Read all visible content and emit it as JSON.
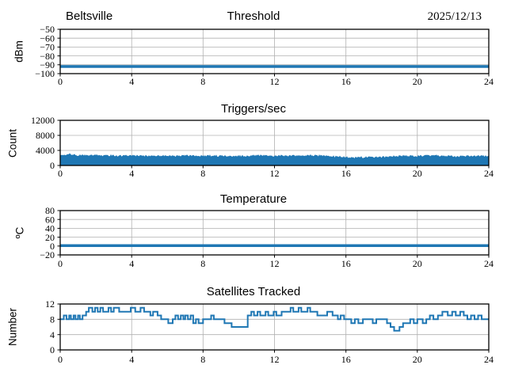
{
  "figure": {
    "background": "#ffffff",
    "accent_color": "#1f77b4",
    "grid_color": "#b0b0b0",
    "axis_color": "#000000",
    "x_unit": "hour of day"
  },
  "chart_data": [
    {
      "type": "line",
      "title": "Threshold",
      "title_left": "Beltsville",
      "title_right": "2025/12/13",
      "ylabel": "dBm",
      "xlim": [
        0,
        24
      ],
      "ylim": [
        -100,
        -50
      ],
      "xticks": [
        0,
        4,
        8,
        12,
        16,
        20,
        24
      ],
      "yticks": [
        -50,
        -60,
        -70,
        -80,
        -90,
        -100
      ],
      "grid": true,
      "legend": false,
      "series": [
        {
          "name": "threshold_dbm",
          "style": "hline",
          "value": -92,
          "linewidth": 3.5
        }
      ]
    },
    {
      "type": "area",
      "title": "Triggers/sec",
      "ylabel": "Count",
      "xlim": [
        0,
        24
      ],
      "ylim": [
        0,
        12000
      ],
      "xticks": [
        0,
        4,
        8,
        12,
        16,
        20,
        24
      ],
      "yticks": [
        0,
        4000,
        8000,
        12000
      ],
      "grid": true,
      "legend": false,
      "series": [
        {
          "name": "triggers_per_sec",
          "style": "noisy-band",
          "base": 80,
          "noise": 250,
          "envelope": [
            [
              0,
              2700
            ],
            [
              0.5,
              2900
            ],
            [
              1,
              2600
            ],
            [
              2,
              2600
            ],
            [
              3,
              2500
            ],
            [
              4,
              2500
            ],
            [
              5,
              2400
            ],
            [
              6,
              2450
            ],
            [
              7,
              2500
            ],
            [
              8,
              2400
            ],
            [
              9,
              2450
            ],
            [
              10,
              2350
            ],
            [
              11,
              2500
            ],
            [
              12,
              2500
            ],
            [
              13,
              2450
            ],
            [
              14,
              2550
            ],
            [
              15,
              2450
            ],
            [
              16,
              2050
            ],
            [
              17,
              2050
            ],
            [
              18,
              2150
            ],
            [
              19,
              2400
            ],
            [
              20,
              2400
            ],
            [
              21,
              2500
            ],
            [
              22,
              2350
            ],
            [
              23,
              2350
            ],
            [
              24,
              2450
            ]
          ]
        }
      ]
    },
    {
      "type": "line",
      "title": "Temperature",
      "ylabel": "ºC",
      "xlim": [
        0,
        24
      ],
      "ylim": [
        -20,
        80
      ],
      "xticks": [
        0,
        4,
        8,
        12,
        16,
        20,
        24
      ],
      "yticks": [
        80,
        60,
        40,
        20,
        0,
        -20
      ],
      "grid": true,
      "legend": false,
      "series": [
        {
          "name": "temperature_c",
          "style": "hline",
          "value": 1,
          "linewidth": 3.5
        }
      ]
    },
    {
      "type": "line",
      "title": "Satellites Tracked",
      "ylabel": "Number",
      "xlim": [
        0,
        24
      ],
      "ylim": [
        0,
        12
      ],
      "xticks": [
        0,
        4,
        8,
        12,
        16,
        20,
        24
      ],
      "yticks": [
        0,
        4,
        8,
        12
      ],
      "grid": true,
      "legend": false,
      "series": [
        {
          "name": "satellites_tracked",
          "style": "step",
          "linewidth": 2,
          "points": [
            [
              0,
              8
            ],
            [
              0.2,
              9
            ],
            [
              0.35,
              8
            ],
            [
              0.5,
              9
            ],
            [
              0.6,
              8
            ],
            [
              0.75,
              9
            ],
            [
              0.85,
              8
            ],
            [
              1.0,
              9
            ],
            [
              1.1,
              8
            ],
            [
              1.25,
              9
            ],
            [
              1.45,
              10
            ],
            [
              1.6,
              11
            ],
            [
              1.8,
              10
            ],
            [
              1.95,
              11
            ],
            [
              2.1,
              10
            ],
            [
              2.25,
              11
            ],
            [
              2.4,
              10
            ],
            [
              2.7,
              11
            ],
            [
              2.85,
              10
            ],
            [
              3.0,
              11
            ],
            [
              3.3,
              10
            ],
            [
              3.95,
              11
            ],
            [
              4.2,
              10
            ],
            [
              4.5,
              11
            ],
            [
              4.7,
              10
            ],
            [
              5.05,
              9
            ],
            [
              5.2,
              10
            ],
            [
              5.45,
              9
            ],
            [
              5.65,
              8
            ],
            [
              6.05,
              7
            ],
            [
              6.3,
              8
            ],
            [
              6.45,
              9
            ],
            [
              6.6,
              8
            ],
            [
              6.75,
              9
            ],
            [
              6.9,
              8
            ],
            [
              7.0,
              9
            ],
            [
              7.15,
              8
            ],
            [
              7.3,
              9
            ],
            [
              7.45,
              7
            ],
            [
              7.6,
              8
            ],
            [
              7.75,
              7
            ],
            [
              8.0,
              8
            ],
            [
              8.45,
              9
            ],
            [
              8.6,
              8
            ],
            [
              9.2,
              7
            ],
            [
              9.6,
              6
            ],
            [
              10.5,
              9
            ],
            [
              10.7,
              10
            ],
            [
              10.85,
              9
            ],
            [
              11.05,
              10
            ],
            [
              11.2,
              9
            ],
            [
              11.5,
              10
            ],
            [
              11.65,
              9
            ],
            [
              11.95,
              10
            ],
            [
              12.1,
              9
            ],
            [
              12.4,
              10
            ],
            [
              12.9,
              11
            ],
            [
              13.05,
              10
            ],
            [
              13.35,
              11
            ],
            [
              13.5,
              10
            ],
            [
              13.85,
              11
            ],
            [
              14.0,
              10
            ],
            [
              14.4,
              9
            ],
            [
              14.95,
              10
            ],
            [
              15.25,
              9
            ],
            [
              15.55,
              8
            ],
            [
              15.7,
              9
            ],
            [
              15.9,
              8
            ],
            [
              16.3,
              7
            ],
            [
              16.5,
              8
            ],
            [
              16.7,
              7
            ],
            [
              16.95,
              8
            ],
            [
              17.5,
              7
            ],
            [
              17.7,
              8
            ],
            [
              18.3,
              7
            ],
            [
              18.5,
              6
            ],
            [
              18.7,
              5
            ],
            [
              19.0,
              6
            ],
            [
              19.2,
              7
            ],
            [
              19.6,
              8
            ],
            [
              19.8,
              7
            ],
            [
              20.0,
              8
            ],
            [
              20.3,
              7
            ],
            [
              20.5,
              8
            ],
            [
              20.7,
              9
            ],
            [
              20.9,
              8
            ],
            [
              21.15,
              9
            ],
            [
              21.4,
              10
            ],
            [
              21.7,
              9
            ],
            [
              21.95,
              10
            ],
            [
              22.15,
              9
            ],
            [
              22.4,
              10
            ],
            [
              22.6,
              9
            ],
            [
              22.8,
              8
            ],
            [
              23.0,
              9
            ],
            [
              23.2,
              8
            ],
            [
              23.4,
              9
            ],
            [
              23.6,
              8
            ],
            [
              24,
              8
            ]
          ]
        }
      ]
    }
  ]
}
